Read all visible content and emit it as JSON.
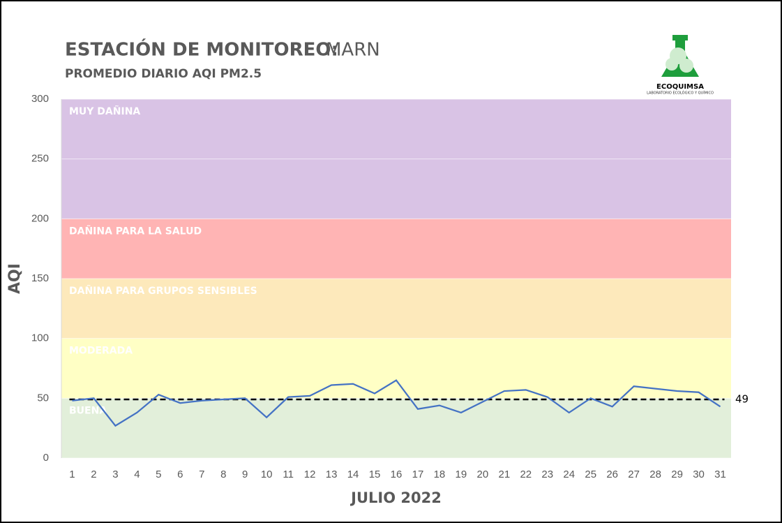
{
  "chart_data": {
    "type": "line",
    "title": "ESTACIÓN DE MONITOREO:",
    "title_station": "MARN",
    "subtitle": "PROMEDIO DIARIO AQI PM2.5",
    "x_label": "JULIO 2022",
    "y_label": "AQI",
    "logo_name": "ECOQUIMSA",
    "logo_tagline": "LABORATORIO ECOLÓGICO Y QUÍMICO",
    "categories": [
      "1",
      "2",
      "3",
      "4",
      "5",
      "6",
      "7",
      "8",
      "9",
      "10",
      "11",
      "12",
      "13",
      "14",
      "15",
      "16",
      "17",
      "18",
      "19",
      "20",
      "21",
      "22",
      "23",
      "24",
      "25",
      "26",
      "27",
      "28",
      "29",
      "30",
      "31"
    ],
    "series": [
      {
        "name": "AQI PM2.5",
        "color": "#4472c4",
        "values": [
          48,
          50,
          27,
          38,
          53,
          46,
          48,
          49,
          50,
          34,
          51,
          52,
          61,
          62,
          54,
          65,
          41,
          44,
          38,
          47,
          56,
          57,
          51,
          38,
          50,
          43,
          60,
          58,
          56,
          55,
          43
        ]
      }
    ],
    "reference_line": 49,
    "reference_color": "#000000",
    "bands": [
      {
        "label": "BUENA",
        "from": 0,
        "to": 50,
        "color": "#e2efda"
      },
      {
        "label": "MODERADA",
        "from": 50,
        "to": 100,
        "color": "#ffffc5"
      },
      {
        "label": "DAÑINA PARA GRUPOS SENSIBLES",
        "from": 100,
        "to": 150,
        "color": "#fde9bb"
      },
      {
        "label": "DAÑINA PARA LA SALUD",
        "from": 150,
        "to": 200,
        "color": "#ffb4b4"
      },
      {
        "label": "MUY DAÑINA",
        "from": 200,
        "to": 300,
        "color": "#d9c3e5"
      }
    ],
    "ylim": [
      0,
      300
    ],
    "yticks": [
      0,
      50,
      100,
      150,
      200,
      250,
      300
    ],
    "grid": true
  }
}
